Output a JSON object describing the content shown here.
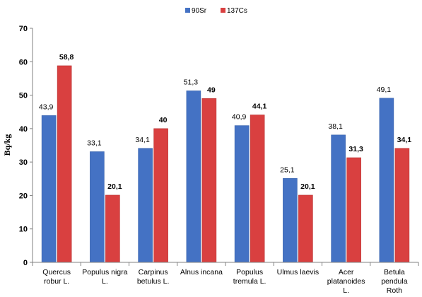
{
  "chart_data": {
    "type": "bar",
    "title": "",
    "xlabel": "",
    "ylabel": "Bq/kg",
    "ylim": [
      0,
      70
    ],
    "yticks": [
      0,
      10,
      20,
      30,
      40,
      50,
      60,
      70
    ],
    "grid": false,
    "legend_position": "top-center",
    "categories": [
      [
        "Quercus",
        "robur L."
      ],
      [
        "Populus nigra",
        "L."
      ],
      [
        "Carpinus",
        "betulus L."
      ],
      [
        "Alnus incana"
      ],
      [
        "Populus",
        "tremula L."
      ],
      [
        "Ulmus laevis"
      ],
      [
        "Acer",
        "platanoides",
        "L."
      ],
      [
        "Betula",
        "pendula",
        "Roth"
      ]
    ],
    "series": [
      {
        "name": "90Sr",
        "color": "#4472C4",
        "values": [
          43.9,
          33.1,
          34.1,
          51.3,
          40.9,
          25.1,
          38.1,
          49.1
        ],
        "labels": [
          "43,9",
          "33,1",
          "34,1",
          "51,3",
          "40,9",
          "25,1",
          "38,1",
          "49,1"
        ]
      },
      {
        "name": "137Cs",
        "color": "#D94040",
        "values": [
          58.8,
          20.1,
          40,
          49,
          44.1,
          20.1,
          31.3,
          34.1
        ],
        "labels": [
          "58,8",
          "20,1",
          "40",
          "49",
          "44,1",
          "20,1",
          "31,3",
          "34,1"
        ]
      }
    ]
  }
}
